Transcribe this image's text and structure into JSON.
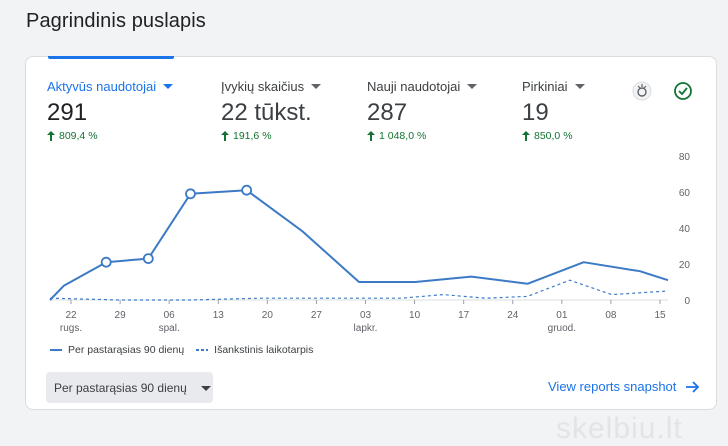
{
  "page": {
    "title": "Pagrindinis puslapis"
  },
  "metrics": [
    {
      "label": "Aktyvūs naudotojai",
      "value": "291",
      "change": "809,4 %"
    },
    {
      "label": "Įvykių skaičius",
      "value": "22 tūkst.",
      "change": "191,6 %"
    },
    {
      "label": "Nauji naudotojai",
      "value": "287",
      "change": "1 048,0 %"
    },
    {
      "label": "Pirkiniai",
      "value": "19",
      "change": "850,0 %"
    }
  ],
  "icons": {
    "insights": "insights-icon",
    "check": "check-circle-icon"
  },
  "colors": {
    "accent": "#1a73e8",
    "line": "#3c7ac6",
    "positive": "#137333"
  },
  "chart_data": {
    "type": "line",
    "ylim": [
      0,
      80
    ],
    "yticks": [
      "80",
      "60",
      "40",
      "20",
      "0"
    ],
    "ytick_values": [
      80,
      60,
      40,
      20,
      0
    ],
    "x_tick_labels": [
      {
        "day": "22",
        "month": "rugs."
      },
      {
        "day": "29",
        "month": ""
      },
      {
        "day": "06",
        "month": "spal."
      },
      {
        "day": "13",
        "month": ""
      },
      {
        "day": "20",
        "month": ""
      },
      {
        "day": "27",
        "month": ""
      },
      {
        "day": "03",
        "month": "lapkr."
      },
      {
        "day": "10",
        "month": ""
      },
      {
        "day": "17",
        "month": ""
      },
      {
        "day": "24",
        "month": ""
      },
      {
        "day": "01",
        "month": "gruod."
      },
      {
        "day": "08",
        "month": ""
      },
      {
        "day": "15",
        "month": ""
      }
    ],
    "series": [
      {
        "name": "Per pastarąsias 90 dienų",
        "style": "solid",
        "points": [
          [
            0,
            0
          ],
          [
            1,
            8
          ],
          [
            4,
            21
          ],
          [
            7,
            23
          ],
          [
            10,
            59
          ],
          [
            14,
            61
          ],
          [
            18,
            38
          ],
          [
            22,
            10
          ],
          [
            26,
            10
          ],
          [
            30,
            13
          ],
          [
            34,
            9
          ],
          [
            38,
            21
          ],
          [
            42,
            16
          ],
          [
            44,
            11
          ]
        ],
        "markers": [
          [
            4,
            21
          ],
          [
            7,
            23
          ],
          [
            10,
            59
          ],
          [
            14,
            61
          ]
        ]
      },
      {
        "name": "Išankstinis laikotarpis",
        "style": "dashed",
        "points": [
          [
            0,
            1
          ],
          [
            5,
            0
          ],
          [
            10,
            0
          ],
          [
            15,
            1
          ],
          [
            20,
            1
          ],
          [
            25,
            1
          ],
          [
            28,
            3
          ],
          [
            31,
            1
          ],
          [
            34,
            2
          ],
          [
            37,
            11
          ],
          [
            40,
            3
          ],
          [
            44,
            5
          ]
        ]
      }
    ]
  },
  "controls": {
    "date_range": "Per pastarąsias 90 dienų",
    "view_link": "View reports snapshot"
  },
  "watermark": "skelbiu.lt"
}
